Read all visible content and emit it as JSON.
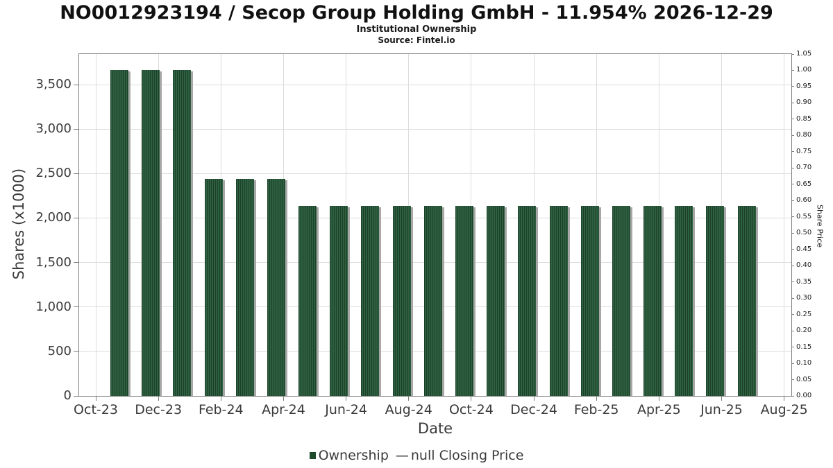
{
  "title": "NO0012923194 / Secop Group Holding GmbH - 11.954% 2026-12-29",
  "subtitle": "Institutional Ownership",
  "source": "Source: Fintel.io",
  "colors": {
    "bar_fill": "#2e5f40",
    "bar_hatch": "#1b4128",
    "bar_shadow": "#a7a7a7",
    "grid": "#dcdcdc",
    "spine": "#7d7d7d",
    "text": "#3a3a3a",
    "legend_square": "#1e4a2c"
  },
  "chart_data": {
    "type": "bar",
    "title": "NO0012923194 / Secop Group Holding GmbH - 11.954% 2026-12-29",
    "subtitle": "Institutional Ownership",
    "source": "Source: Fintel.io",
    "xlabel": "Date",
    "ylabel_left": "Shares (x1000)",
    "ylabel_right": "Share Price",
    "x_tick_labels": [
      "Oct-23",
      "Dec-23",
      "Feb-24",
      "Apr-24",
      "Jun-24",
      "Aug-24",
      "Oct-24",
      "Dec-24",
      "Feb-25",
      "Apr-25",
      "Jun-25",
      "Aug-25"
    ],
    "y_left_ticks": [
      "0",
      "500",
      "1,000",
      "1,500",
      "2,000",
      "2,500",
      "3,000",
      "3,500"
    ],
    "y_left_tick_values": [
      0,
      500,
      1000,
      1500,
      2000,
      2500,
      3000,
      3500
    ],
    "y_right_ticks": [
      "0.00",
      "0.05",
      "0.10",
      "0.15",
      "0.20",
      "0.25",
      "0.30",
      "0.35",
      "0.40",
      "0.45",
      "0.50",
      "0.55",
      "0.60",
      "0.65",
      "0.70",
      "0.75",
      "0.80",
      "0.85",
      "0.90",
      "0.95",
      "1.00",
      "1.05"
    ],
    "ylim_left": [
      0,
      3840
    ],
    "ylim_right": [
      0,
      1.05
    ],
    "grid": "horizontal lines at left-axis ticks, vertical lines at x ticks",
    "legend_position": "bottom center",
    "series": [
      {
        "name": "Ownership",
        "categories": [
          "Oct-23",
          "Nov-23",
          "Dec-23",
          "Jan-24",
          "Feb-24",
          "Mar-24",
          "Apr-24",
          "May-24",
          "Jun-24",
          "Jul-24",
          "Aug-24",
          "Sep-24",
          "Oct-24",
          "Nov-24",
          "Dec-24",
          "Jan-25",
          "Feb-25",
          "Mar-25",
          "Apr-25",
          "May-25",
          "Jun-25"
        ],
        "values": [
          3663,
          3663,
          3663,
          2437,
          2437,
          2437,
          2139,
          2139,
          2139,
          2139,
          2139,
          2139,
          2139,
          2139,
          2139,
          2139,
          2139,
          2139,
          2139,
          2139,
          2139
        ]
      },
      {
        "name": "null Closing Price",
        "values": []
      }
    ],
    "legend": {
      "ownership_label": "Ownership",
      "dash": "—",
      "price_label": "null Closing Price"
    }
  }
}
